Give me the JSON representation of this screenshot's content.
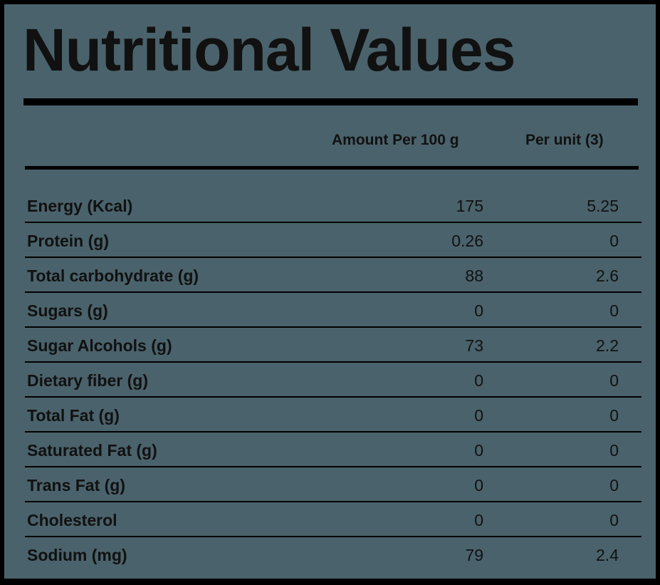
{
  "title": "Nutritional Values",
  "columns": {
    "amount": "Amount Per 100 g",
    "per_unit": "Per unit (3)"
  },
  "rows": [
    {
      "label": "Energy (Kcal)",
      "amount": "175",
      "per_unit": "5.25"
    },
    {
      "label": "Protein (g)",
      "amount": "0.26",
      "per_unit": "0"
    },
    {
      "label": "Total carbohydrate (g)",
      "amount": "88",
      "per_unit": "2.6"
    },
    {
      "label": "Sugars (g)",
      "amount": "0",
      "per_unit": "0"
    },
    {
      "label": "Sugar Alcohols (g)",
      "amount": "73",
      "per_unit": "2.2"
    },
    {
      "label": "Dietary fiber (g)",
      "amount": "0",
      "per_unit": "0"
    },
    {
      "label": "Total Fat (g)",
      "amount": "0",
      "per_unit": "0"
    },
    {
      "label": "Saturated Fat (g)",
      "amount": "0",
      "per_unit": "0"
    },
    {
      "label": "Trans Fat (g)",
      "amount": "0",
      "per_unit": "0"
    },
    {
      "label": "Cholesterol",
      "amount": "0",
      "per_unit": "0"
    },
    {
      "label": "Sodium (mg)",
      "amount": "79",
      "per_unit": "2.4"
    }
  ],
  "colors": {
    "background": "#4a626b",
    "ink": "#111111",
    "rule": "#000000"
  }
}
